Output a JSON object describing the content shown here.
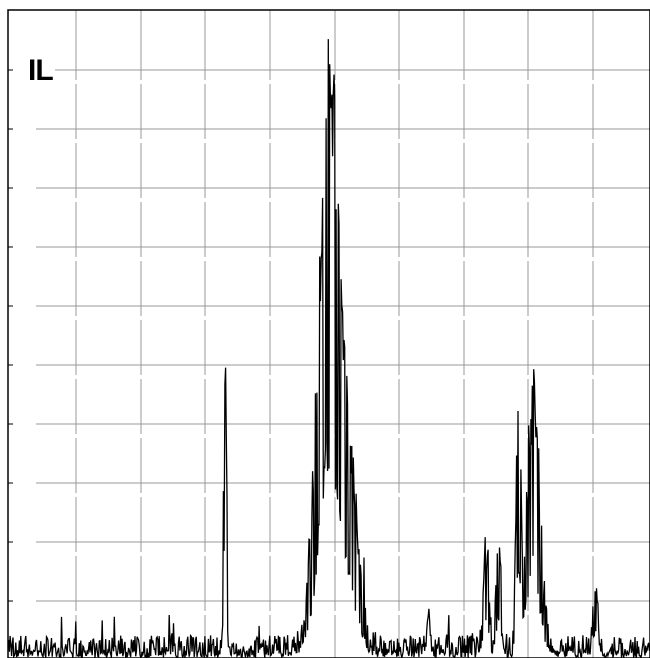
{
  "chart_data": {
    "type": "line",
    "title": "",
    "xlabel": "",
    "ylabel": "",
    "panel_label": "IL",
    "xlim": [
      0,
      100
    ],
    "ylim": [
      0,
      100
    ],
    "grid": true,
    "line_color": "#000000",
    "grid_color": "#999999",
    "noise_floor": 3,
    "noise_amplitude": 3.5,
    "peaks": [
      {
        "center": 33.8,
        "height": 48,
        "width": 0.25
      },
      {
        "center": 50.0,
        "height": 96,
        "width": 1.6
      },
      {
        "center": 53.2,
        "height": 25,
        "width": 1.5
      },
      {
        "center": 65.5,
        "height": 6,
        "width": 0.3
      },
      {
        "center": 74.5,
        "height": 18,
        "width": 0.4
      },
      {
        "center": 76.5,
        "height": 20,
        "width": 0.4
      },
      {
        "center": 79.5,
        "height": 40,
        "width": 0.35
      },
      {
        "center": 81.8,
        "height": 43,
        "width": 1.0
      },
      {
        "center": 91.5,
        "height": 12,
        "width": 0.3
      }
    ]
  }
}
